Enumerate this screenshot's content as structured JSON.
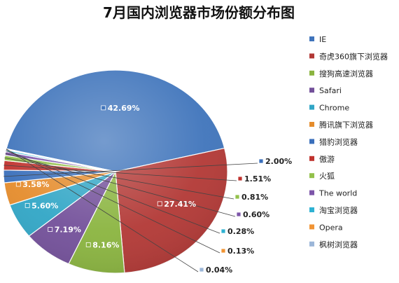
{
  "chart_data": {
    "type": "pie",
    "title": "7月国内浏览器市场份额分布图",
    "unit": "%",
    "legend_position": "right",
    "slices": [
      {
        "name": "IE",
        "value": 42.69,
        "label": "42.69%",
        "color": "#3f74bb"
      },
      {
        "name": "奇虎360旗下浏览器",
        "value": 27.41,
        "label": "27.41%",
        "color": "#b23835"
      },
      {
        "name": "搜狗高速浏览器",
        "value": 8.16,
        "label": "8.16%",
        "color": "#8ab43f"
      },
      {
        "name": "Safari",
        "value": 7.19,
        "label": "7.19%",
        "color": "#73509a"
      },
      {
        "name": "Chrome",
        "value": 5.6,
        "label": "5.60%",
        "color": "#31a6c6"
      },
      {
        "name": "腾讯旗下浏览器",
        "value": 3.58,
        "label": "3.58%",
        "color": "#e58c2c"
      },
      {
        "name": "猎豹浏览器",
        "value": 2.0,
        "label": "2.00%",
        "color": "#3a6fbb"
      },
      {
        "name": "傲游",
        "value": 1.51,
        "label": "1.51%",
        "color": "#c0332e"
      },
      {
        "name": "火狐",
        "value": 0.81,
        "label": "0.81%",
        "color": "#93c14b"
      },
      {
        "name": "The world",
        "value": 0.6,
        "label": "0.60%",
        "color": "#7d55a9"
      },
      {
        "name": "淘宝浏览器",
        "value": 0.28,
        "label": "0.28%",
        "color": "#2fb2d3"
      },
      {
        "name": "Opera",
        "value": 0.13,
        "label": "0.13%",
        "color": "#f19434"
      },
      {
        "name": "枫树浏览器",
        "value": 0.04,
        "label": "0.04%",
        "color": "#9bb6d8"
      }
    ]
  }
}
